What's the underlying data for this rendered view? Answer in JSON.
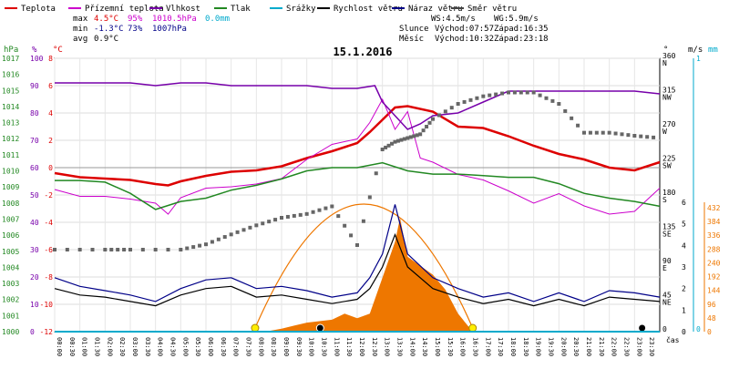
{
  "legend": [
    {
      "label": "Teplota",
      "color": "#dd0000"
    },
    {
      "label": "Přízemní teplota",
      "color": "#cc00cc"
    },
    {
      "label": "Vlhkost",
      "color": "#7700aa"
    },
    {
      "label": "Tlak",
      "color": "#228822"
    },
    {
      "label": "Srážky",
      "color": "#00aacc"
    },
    {
      "label": "Rychlost větru",
      "color": "#000000"
    },
    {
      "label": "Náraz větru",
      "color": "#000088"
    },
    {
      "label": "Směr větru",
      "color": "#444444"
    }
  ],
  "stats": {
    "max_label": "max",
    "max_temp": "4.5°C",
    "max_hum": "95%",
    "max_press": "1010.5hPa",
    "max_rain": "0.0mm",
    "min_label": "min",
    "min_temp": "-1.3°C",
    "min_hum": "73%",
    "min_press": "1007hPa",
    "avg_label": "avg",
    "avg_temp": "0.9°C"
  },
  "wind": {
    "ws": "WS:4.5m/s",
    "wg": "WG:5.9m/s"
  },
  "sun": {
    "label": "Slunce",
    "rise": "Východ:07:57",
    "set": "Západ:16:35"
  },
  "moon": {
    "label": "Měsíc",
    "rise": "Východ:10:32",
    "set": "Západ:23:18"
  },
  "title": "15.1.2016",
  "colors": {
    "temp": "#dd0000",
    "ground": "#cc00cc",
    "hum": "#7700aa",
    "press": "#228822",
    "rain": "#00aacc",
    "wind": "#000000",
    "gust": "#000088",
    "dir": "#666666",
    "sun": "#ee7700",
    "axis_orange": "#ee7700",
    "axis_cyan": "#00aacc"
  },
  "axes": {
    "hpa_unit": "hPa",
    "pct_unit": "%",
    "c_unit": "°C",
    "deg_unit": "°",
    "ms_unit": "m/s",
    "mm_unit": "mm",
    "hpa_ticks": [
      "1017",
      "1016",
      "1015",
      "1014",
      "1013",
      "1012",
      "1011",
      "1010",
      "1009",
      "1008",
      "1007",
      "1006",
      "1005",
      "1004",
      "1003",
      "1002",
      "1001",
      "1000"
    ],
    "pct_ticks": [
      "100",
      "90",
      "80",
      "70",
      "60",
      "50",
      "40",
      "30",
      "20",
      "10",
      "0"
    ],
    "c_ticks": [
      "8",
      "6",
      "4",
      "2",
      "0",
      "-2",
      "-4",
      "-6",
      "-8",
      "-10",
      "-12"
    ],
    "dir_ticks": [
      {
        "deg": "360",
        "dir": "N"
      },
      {
        "deg": "315",
        "dir": "NW"
      },
      {
        "deg": "270",
        "dir": "W"
      },
      {
        "deg": "225",
        "dir": "SW"
      },
      {
        "deg": "180",
        "dir": "S"
      },
      {
        "deg": "135",
        "dir": "SE"
      },
      {
        "deg": "90",
        "dir": "E"
      },
      {
        "deg": "45",
        "dir": "NE"
      },
      {
        "deg": "0",
        "dir": ""
      }
    ],
    "ms_ticks": [
      "6",
      "5",
      "4",
      "3",
      "2",
      "1",
      "0"
    ],
    "mm_top": "1",
    "mm_bottom": "0",
    "orange_ticks": [
      "432",
      "384",
      "336",
      "288",
      "240",
      "192",
      "144",
      "96",
      "48",
      "0"
    ],
    "cas_label": "čas",
    "time_ticks": [
      "00:00",
      "00:30",
      "01:00",
      "01:30",
      "02:00",
      "02:30",
      "03:00",
      "03:30",
      "04:00",
      "04:30",
      "05:00",
      "05:30",
      "06:00",
      "06:30",
      "07:00",
      "07:30",
      "08:00",
      "08:30",
      "09:00",
      "09:30",
      "10:00",
      "10:30",
      "11:00",
      "11:30",
      "12:00",
      "12:30",
      "13:00",
      "13:30",
      "14:00",
      "14:30",
      "15:00",
      "15:30",
      "16:00",
      "16:30",
      "17:00",
      "17:30",
      "18:00",
      "18:30",
      "19:00",
      "19:30",
      "20:00",
      "20:30",
      "21:00",
      "21:30",
      "22:00",
      "22:30",
      "23:00",
      "23:30"
    ]
  },
  "chart_data": {
    "type": "line",
    "title": "15.1.2016",
    "x_unit": "hour of day",
    "series": [
      {
        "name": "Teplota",
        "unit": "°C",
        "points": [
          [
            0,
            -0.4
          ],
          [
            1,
            -0.7
          ],
          [
            2,
            -0.8
          ],
          [
            3,
            -0.9
          ],
          [
            4,
            -1.2
          ],
          [
            4.5,
            -1.3
          ],
          [
            5,
            -1.0
          ],
          [
            6,
            -0.6
          ],
          [
            7,
            -0.3
          ],
          [
            8,
            -0.2
          ],
          [
            9,
            0.1
          ],
          [
            10,
            0.7
          ],
          [
            11,
            1.2
          ],
          [
            12,
            1.8
          ],
          [
            12.5,
            2.6
          ],
          [
            13.5,
            4.4
          ],
          [
            14,
            4.5
          ],
          [
            15,
            4.1
          ],
          [
            16,
            3.0
          ],
          [
            17,
            2.9
          ],
          [
            18,
            2.3
          ],
          [
            19,
            1.6
          ],
          [
            20,
            1.0
          ],
          [
            21,
            0.6
          ],
          [
            22,
            0.0
          ],
          [
            23,
            -0.2
          ],
          [
            24,
            0.4
          ]
        ]
      },
      {
        "name": "Přízemní teplota",
        "unit": "°C",
        "points": [
          [
            0,
            -1.6
          ],
          [
            1,
            -2.1
          ],
          [
            2,
            -2.1
          ],
          [
            3,
            -2.3
          ],
          [
            4,
            -2.6
          ],
          [
            4.5,
            -3.4
          ],
          [
            5,
            -2.2
          ],
          [
            6,
            -1.5
          ],
          [
            7,
            -1.4
          ],
          [
            8,
            -1.2
          ],
          [
            9,
            -0.8
          ],
          [
            10,
            0.6
          ],
          [
            11,
            1.7
          ],
          [
            12,
            2.1
          ],
          [
            12.5,
            3.3
          ],
          [
            13,
            5.0
          ],
          [
            13.5,
            2.8
          ],
          [
            14,
            4.1
          ],
          [
            14.5,
            0.7
          ],
          [
            15,
            0.4
          ],
          [
            16,
            -0.5
          ],
          [
            17,
            -0.9
          ],
          [
            18,
            -1.7
          ],
          [
            19,
            -2.6
          ],
          [
            20,
            -1.9
          ],
          [
            21,
            -2.8
          ],
          [
            22,
            -3.4
          ],
          [
            23,
            -3.2
          ],
          [
            24,
            -1.5
          ]
        ]
      },
      {
        "name": "Vlhkost",
        "unit": "%",
        "points": [
          [
            0,
            91
          ],
          [
            1,
            91
          ],
          [
            2,
            91
          ],
          [
            3,
            91
          ],
          [
            4,
            90
          ],
          [
            5,
            91
          ],
          [
            6,
            91
          ],
          [
            7,
            90
          ],
          [
            8,
            90
          ],
          [
            9,
            90
          ],
          [
            10,
            90
          ],
          [
            11,
            89
          ],
          [
            12,
            89
          ],
          [
            12.7,
            90
          ],
          [
            13,
            84
          ],
          [
            14,
            74
          ],
          [
            14.5,
            76
          ],
          [
            15,
            79
          ],
          [
            16,
            80
          ],
          [
            17,
            84
          ],
          [
            18,
            88
          ],
          [
            19,
            88
          ],
          [
            20,
            88
          ],
          [
            21,
            88
          ],
          [
            22,
            88
          ],
          [
            23,
            88
          ],
          [
            24,
            87
          ]
        ]
      },
      {
        "name": "Tlak",
        "unit": "hPa",
        "points": [
          [
            0,
            1009.4
          ],
          [
            1,
            1009.4
          ],
          [
            2,
            1009.3
          ],
          [
            3,
            1008.6
          ],
          [
            4,
            1007.6
          ],
          [
            5,
            1008.1
          ],
          [
            6,
            1008.3
          ],
          [
            7,
            1008.8
          ],
          [
            8,
            1009.1
          ],
          [
            9,
            1009.5
          ],
          [
            10,
            1010.0
          ],
          [
            11,
            1010.2
          ],
          [
            12,
            1010.2
          ],
          [
            13,
            1010.5
          ],
          [
            14,
            1010.0
          ],
          [
            15,
            1009.8
          ],
          [
            16,
            1009.8
          ],
          [
            17,
            1009.7
          ],
          [
            18,
            1009.6
          ],
          [
            19,
            1009.6
          ],
          [
            20,
            1009.2
          ],
          [
            21,
            1008.6
          ],
          [
            22,
            1008.3
          ],
          [
            23,
            1008.1
          ],
          [
            24,
            1007.8
          ]
        ]
      },
      {
        "name": "Rychlost větru",
        "unit": "m/s",
        "points": [
          [
            0,
            2.0
          ],
          [
            1,
            1.7
          ],
          [
            2,
            1.6
          ],
          [
            3,
            1.4
          ],
          [
            4,
            1.2
          ],
          [
            5,
            1.7
          ],
          [
            6,
            2.0
          ],
          [
            7,
            2.1
          ],
          [
            8,
            1.6
          ],
          [
            9,
            1.7
          ],
          [
            10,
            1.5
          ],
          [
            11,
            1.3
          ],
          [
            12,
            1.5
          ],
          [
            12.5,
            2.0
          ],
          [
            13,
            3.0
          ],
          [
            13.5,
            4.5
          ],
          [
            14,
            3.0
          ],
          [
            15,
            2.0
          ],
          [
            16,
            1.6
          ],
          [
            17,
            1.3
          ],
          [
            18,
            1.5
          ],
          [
            19,
            1.2
          ],
          [
            20,
            1.5
          ],
          [
            21,
            1.2
          ],
          [
            22,
            1.6
          ],
          [
            23,
            1.5
          ],
          [
            24,
            1.4
          ]
        ]
      },
      {
        "name": "Náraz větru",
        "unit": "m/s",
        "points": [
          [
            0,
            2.5
          ],
          [
            1,
            2.1
          ],
          [
            2,
            1.9
          ],
          [
            3,
            1.7
          ],
          [
            4,
            1.4
          ],
          [
            5,
            2.0
          ],
          [
            6,
            2.4
          ],
          [
            7,
            2.5
          ],
          [
            8,
            2.0
          ],
          [
            9,
            2.1
          ],
          [
            10,
            1.9
          ],
          [
            11,
            1.6
          ],
          [
            12,
            1.8
          ],
          [
            12.5,
            2.5
          ],
          [
            13,
            3.6
          ],
          [
            13.5,
            5.9
          ],
          [
            14,
            3.6
          ],
          [
            15,
            2.5
          ],
          [
            16,
            2.0
          ],
          [
            17,
            1.6
          ],
          [
            18,
            1.8
          ],
          [
            19,
            1.4
          ],
          [
            20,
            1.8
          ],
          [
            21,
            1.4
          ],
          [
            22,
            1.9
          ],
          [
            23,
            1.8
          ],
          [
            24,
            1.6
          ]
        ]
      },
      {
        "name": "Směr větru",
        "unit": "°",
        "points": [
          [
            0,
            108
          ],
          [
            2,
            108
          ],
          [
            3,
            108
          ],
          [
            5,
            108
          ],
          [
            6,
            115
          ],
          [
            7,
            128
          ],
          [
            8,
            140
          ],
          [
            9,
            150
          ],
          [
            10,
            155
          ],
          [
            11,
            165
          ],
          [
            12,
            114
          ],
          [
            13,
            240
          ],
          [
            13.5,
            250
          ],
          [
            14,
            255
          ],
          [
            14.5,
            260
          ],
          [
            15,
            280
          ],
          [
            16,
            300
          ],
          [
            17,
            310
          ],
          [
            18,
            315
          ],
          [
            19,
            315
          ],
          [
            20,
            300
          ],
          [
            21,
            262
          ],
          [
            22,
            262
          ],
          [
            23,
            258
          ],
          [
            24,
            255
          ]
        ]
      },
      {
        "name": "Srážky",
        "unit": "mm",
        "points": [
          [
            0,
            0
          ],
          [
            24,
            0
          ]
        ]
      }
    ],
    "solar": {
      "unit": "W/m²",
      "points": [
        [
          7.97,
          0
        ],
        [
          8.5,
          2
        ],
        [
          9,
          10
        ],
        [
          9.5,
          20
        ],
        [
          10,
          30
        ],
        [
          10.5,
          35
        ],
        [
          11,
          40
        ],
        [
          11.5,
          60
        ],
        [
          12,
          45
        ],
        [
          12.5,
          60
        ],
        [
          13,
          180
        ],
        [
          13.5,
          300
        ],
        [
          13.7,
          380
        ],
        [
          14,
          250
        ],
        [
          14.5,
          220
        ],
        [
          15,
          190
        ],
        [
          15.5,
          140
        ],
        [
          16,
          60
        ],
        [
          16.58,
          0
        ]
      ]
    },
    "sun_rise": 7.95,
    "sun_set": 16.58,
    "moon_rise": 10.53,
    "moon_set": 23.3
  }
}
